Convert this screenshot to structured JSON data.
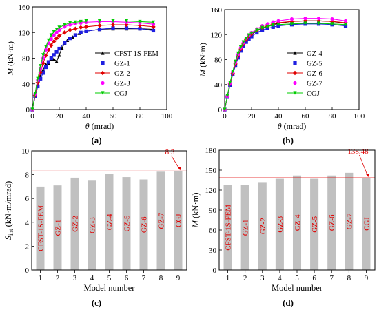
{
  "panels": [
    {
      "id": "a",
      "caption": "(a)",
      "chart_data": {
        "type": "line",
        "xlabel_var": "θ",
        "xlabel_unit": "(mrad)",
        "ylabel_var": "M",
        "ylabel_unit": "(kN·m)",
        "xlim": [
          0,
          100
        ],
        "ylim": [
          0,
          160
        ],
        "xticks": [
          0,
          20,
          40,
          60,
          80,
          100
        ],
        "yticks": [
          0,
          40,
          80,
          120,
          160
        ],
        "legend": "bottom-right",
        "series": [
          {
            "name": "CFST-1S-FEM",
            "color": "#000000",
            "marker": "triangle",
            "x": [
              0,
              2,
              4,
              6,
              8,
              10,
              12,
              14,
              16,
              18,
              20,
              22,
              24,
              26,
              30,
              35,
              40,
              50,
              60,
              70,
              80,
              90
            ],
            "y": [
              0,
              20,
              37,
              52,
              62,
              70,
              72,
              78,
              79,
              75,
              85,
              96,
              103,
              108,
              113,
              119,
              122,
              125,
              126,
              126,
              126,
              125
            ]
          },
          {
            "name": "GZ-1",
            "color": "#1f1fe0",
            "marker": "square",
            "x": [
              0,
              2,
              4,
              6,
              8,
              10,
              12,
              14,
              16,
              18,
              20,
              24,
              28,
              32,
              36,
              40,
              50,
              60,
              70,
              80,
              90
            ],
            "y": [
              0,
              20,
              36,
              48,
              57,
              66,
              74,
              80,
              85,
              90,
              95,
              104,
              111,
              116,
              120,
              122,
              125,
              127,
              127,
              126,
              123
            ]
          },
          {
            "name": "GZ-2",
            "color": "#e00000",
            "marker": "diamond",
            "x": [
              0,
              2,
              4,
              6,
              8,
              10,
              12,
              14,
              16,
              18,
              20,
              24,
              28,
              32,
              36,
              40,
              50,
              60,
              70,
              80,
              90
            ],
            "y": [
              0,
              22,
              42,
              58,
              72,
              84,
              93,
              100,
              106,
              111,
              115,
              120,
              124,
              126,
              128,
              129,
              131,
              132,
              132,
              131,
              129
            ]
          },
          {
            "name": "GZ-3",
            "color": "#ff00ff",
            "marker": "circle",
            "x": [
              0,
              2,
              4,
              6,
              8,
              10,
              12,
              14,
              16,
              18,
              20,
              24,
              28,
              32,
              36,
              40,
              50,
              60,
              70,
              80,
              90
            ],
            "y": [
              0,
              24,
              46,
              64,
              80,
              93,
              103,
              110,
              116,
              120,
              124,
              129,
              132,
              134,
              135,
              136,
              137,
              137,
              136,
              135,
              133
            ]
          },
          {
            "name": "CGJ",
            "color": "#00cc00",
            "marker": "triangle-down",
            "x": [
              0,
              2,
              4,
              6,
              8,
              10,
              12,
              14,
              16,
              18,
              20,
              24,
              28,
              32,
              36,
              40,
              50,
              60,
              70,
              80,
              90
            ],
            "y": [
              0,
              25,
              48,
              68,
              85,
              98,
              108,
              116,
              121,
              125,
              128,
              132,
              135,
              136,
              137,
              138,
              138,
              138,
              138,
              137,
              136
            ]
          }
        ]
      }
    },
    {
      "id": "b",
      "caption": "(b)",
      "chart_data": {
        "type": "line",
        "xlabel_var": "θ",
        "xlabel_unit": "(mrad)",
        "ylabel_var": "M",
        "ylabel_unit": "(kN·m)",
        "xlim": [
          0,
          100
        ],
        "ylim": [
          0,
          160
        ],
        "xticks": [
          0,
          20,
          40,
          60,
          80,
          100
        ],
        "yticks": [
          0,
          40,
          80,
          120,
          160
        ],
        "legend": "bottom-right",
        "series": [
          {
            "name": "GZ-4",
            "color": "#000000",
            "marker": "triangle",
            "x": [
              0,
              2,
              4,
              6,
              8,
              10,
              12,
              14,
              16,
              18,
              20,
              24,
              28,
              32,
              36,
              40,
              50,
              60,
              70,
              80,
              90
            ],
            "y": [
              0,
              20,
              40,
              57,
              72,
              85,
              96,
              104,
              111,
              116,
              120,
              126,
              130,
              133,
              136,
              138,
              141,
              142,
              142,
              141,
              138
            ]
          },
          {
            "name": "GZ-5",
            "color": "#1f1fe0",
            "marker": "square",
            "x": [
              0,
              2,
              4,
              6,
              8,
              10,
              12,
              14,
              16,
              18,
              20,
              24,
              28,
              32,
              36,
              40,
              50,
              60,
              70,
              80,
              90
            ],
            "y": [
              0,
              20,
              39,
              56,
              70,
              83,
              94,
              102,
              108,
              113,
              117,
              123,
              127,
              130,
              132,
              134,
              136,
              137,
              137,
              136,
              134
            ]
          },
          {
            "name": "GZ-6",
            "color": "#e00000",
            "marker": "diamond",
            "x": [
              0,
              2,
              4,
              6,
              8,
              10,
              12,
              14,
              16,
              18,
              20,
              24,
              28,
              32,
              36,
              40,
              50,
              60,
              70,
              80,
              90
            ],
            "y": [
              0,
              21,
              41,
              58,
              73,
              86,
              97,
              105,
              112,
              117,
              121,
              127,
              131,
              134,
              137,
              139,
              141,
              142,
              142,
              141,
              139
            ]
          },
          {
            "name": "GZ-7",
            "color": "#ff00ff",
            "marker": "circle",
            "x": [
              0,
              2,
              4,
              6,
              8,
              10,
              12,
              14,
              16,
              18,
              20,
              24,
              28,
              32,
              36,
              40,
              50,
              60,
              70,
              80,
              90
            ],
            "y": [
              0,
              21,
              42,
              60,
              75,
              88,
              99,
              107,
              114,
              119,
              123,
              129,
              134,
              137,
              140,
              142,
              145,
              146,
              146,
              145,
              142
            ]
          },
          {
            "name": "CGJ",
            "color": "#00cc00",
            "marker": "triangle-down",
            "x": [
              0,
              2,
              4,
              6,
              8,
              10,
              12,
              14,
              16,
              18,
              20,
              24,
              28,
              32,
              36,
              40,
              50,
              60,
              70,
              80,
              90
            ],
            "y": [
              0,
              22,
              43,
              61,
              77,
              90,
              100,
              108,
              114,
              119,
              122,
              127,
              131,
              133,
              135,
              136,
              137,
              138,
              138,
              137,
              136
            ]
          }
        ]
      }
    },
    {
      "id": "c",
      "caption": "(c)",
      "chart_data": {
        "type": "bar",
        "categories": [
          1,
          2,
          3,
          4,
          5,
          6,
          7,
          8,
          9
        ],
        "values": [
          7.0,
          7.1,
          7.75,
          7.5,
          8.05,
          7.8,
          7.6,
          8.25,
          8.3
        ],
        "bar_labels": [
          "CFST-1S-FEM",
          "GZ-1",
          "GZ-2",
          "GZ-3",
          "GZ-4",
          "GZ-5",
          "GZ-6",
          "GZ-7",
          "CGJ"
        ],
        "xlabel": "Model number",
        "ylabel_var": "S",
        "ylabel_sub": "int",
        "ylabel_unit": "(kN·m/mrad)",
        "xlim": [
          0.5,
          9.5
        ],
        "ylim": [
          0,
          10
        ],
        "yticks": [
          0,
          2,
          4,
          6,
          8,
          10
        ],
        "ref_line": 8.3,
        "annotation": "8.3",
        "bar_color": "#c0c0c0",
        "label_color": "#e00000"
      }
    },
    {
      "id": "d",
      "caption": "(d)",
      "chart_data": {
        "type": "bar",
        "categories": [
          1,
          2,
          3,
          4,
          5,
          6,
          7,
          8,
          9
        ],
        "values": [
          127.5,
          127.5,
          132,
          137,
          142,
          137,
          142,
          146,
          138.48
        ],
        "bar_labels": [
          "CFST-1S-FEM",
          "GZ-1",
          "GZ-2",
          "GZ-3",
          "GZ-4",
          "GZ-5",
          "GZ-6",
          "GZ-7",
          "CGJ"
        ],
        "xlabel": "Model number",
        "ylabel_var": "M",
        "ylabel_unit": "(kN·m)",
        "xlim": [
          0.5,
          9.5
        ],
        "ylim": [
          0,
          180
        ],
        "yticks": [
          0,
          30,
          60,
          90,
          120,
          150,
          180
        ],
        "ref_line": 138.48,
        "annotation": "138.48",
        "bar_color": "#c0c0c0",
        "label_color": "#e00000"
      }
    }
  ]
}
